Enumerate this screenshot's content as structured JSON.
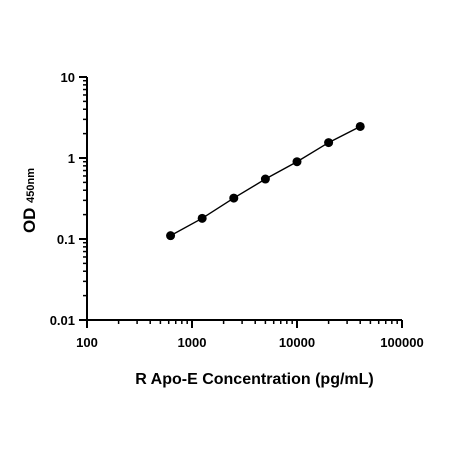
{
  "chart_data": {
    "type": "scatter",
    "xscale": "log",
    "yscale": "log",
    "xlim": [
      100,
      100000
    ],
    "ylim": [
      0.01,
      10
    ],
    "x_ticks": [
      100,
      1000,
      10000,
      100000
    ],
    "x_tick_labels": [
      "100",
      "1000",
      "10000",
      "100000"
    ],
    "y_ticks": [
      0.01,
      0.1,
      1,
      10
    ],
    "y_tick_labels": [
      "0.01",
      "0.1",
      "1",
      "10"
    ],
    "xlabel": "R Apo-E Concentration (pg/mL)",
    "ylabel": {
      "main": "OD",
      "sub": "450nm"
    },
    "grid": false,
    "legend": false,
    "marker_color": "#000000",
    "line_color": "#000000",
    "series": [
      {
        "x": [
          625,
          1250,
          2500,
          5000,
          10000,
          20000,
          40000
        ],
        "y": [
          0.11,
          0.18,
          0.32,
          0.55,
          0.9,
          1.55,
          2.45
        ],
        "fit_line": true
      }
    ]
  }
}
